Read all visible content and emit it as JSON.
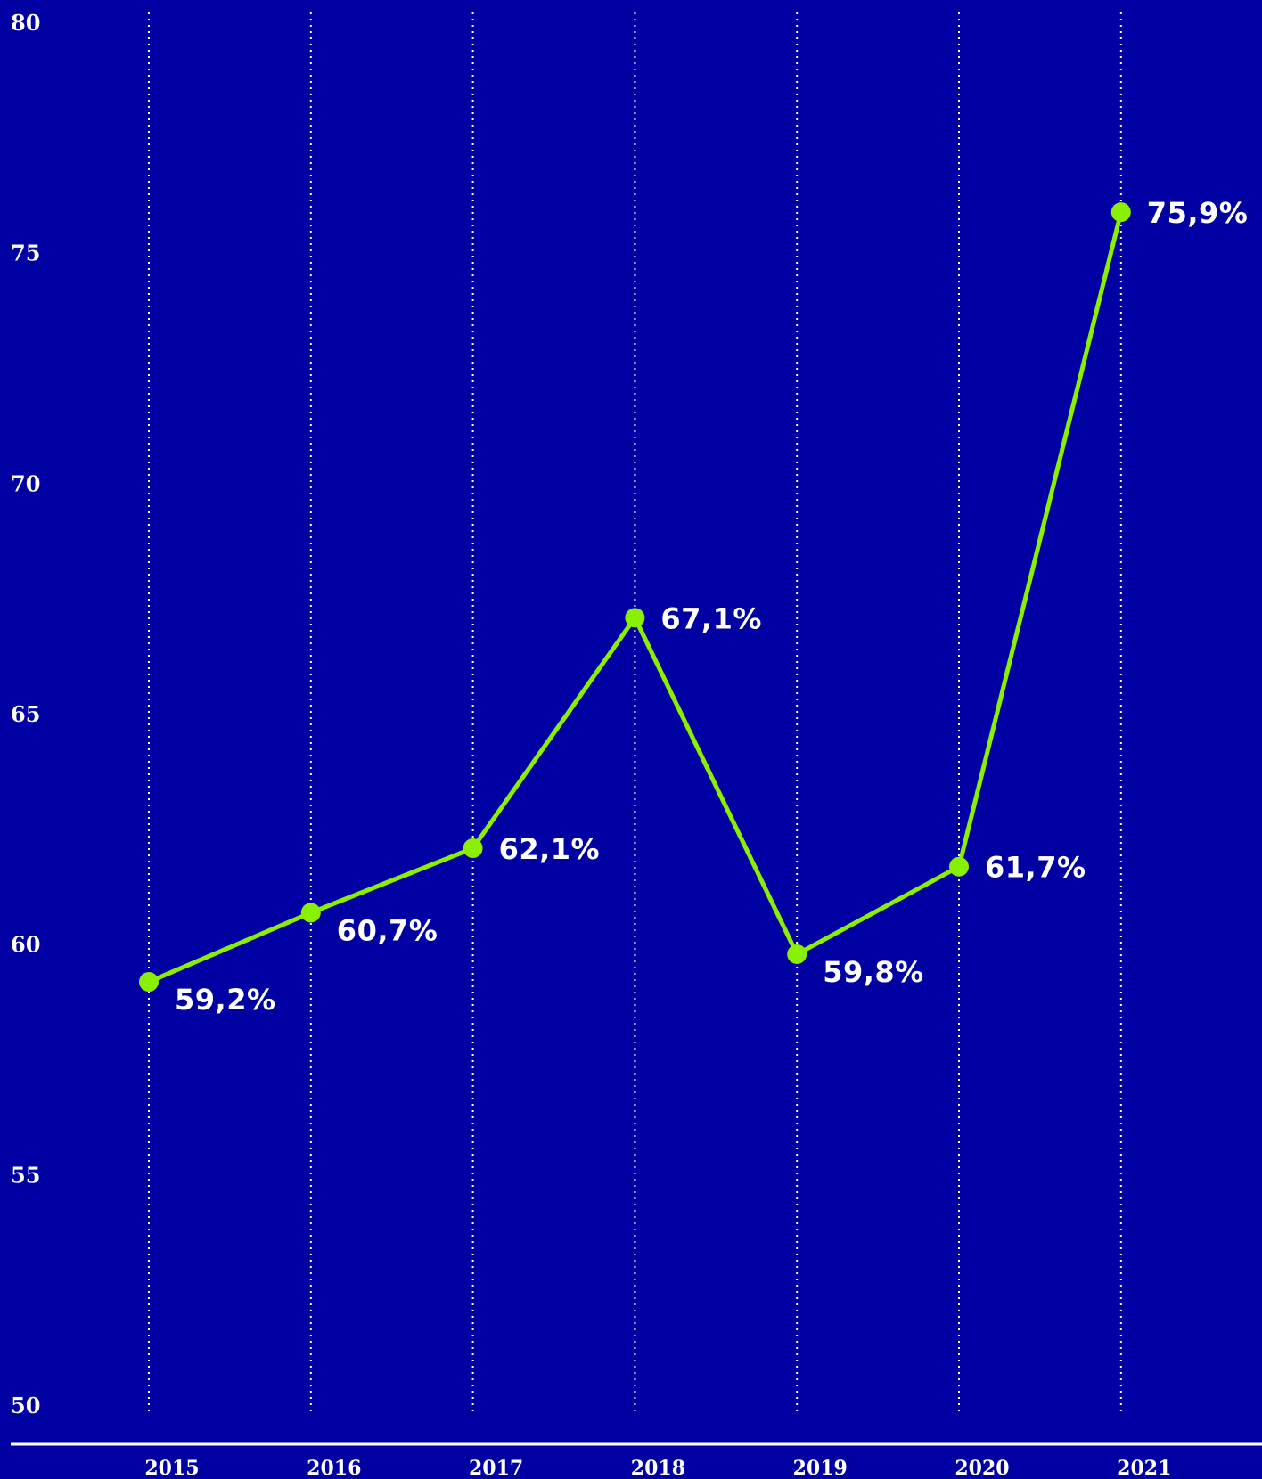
{
  "chart_data": {
    "type": "line",
    "categories": [
      "2015",
      "2016",
      "2017",
      "2018",
      "2019",
      "2020",
      "2021"
    ],
    "series": [
      {
        "values": [
          59.2,
          60.7,
          62.1,
          67.1,
          59.8,
          61.7,
          75.9
        ],
        "labels": [
          "59,2%",
          "60,7%",
          "62,1%",
          "67,1%",
          "59,8%",
          "61,7%",
          "75,9%"
        ]
      }
    ],
    "yticks": [
      "80",
      "75",
      "70",
      "65",
      "60",
      "55",
      "50"
    ],
    "ylim": [
      50,
      80
    ],
    "title": "",
    "xlabel": "",
    "ylabel": "",
    "grid": "vertical dotted",
    "colors": {
      "background": "#0000A3",
      "line": "#88F000",
      "text": "#FFFFFF",
      "grid": "#FFFFFF"
    }
  }
}
